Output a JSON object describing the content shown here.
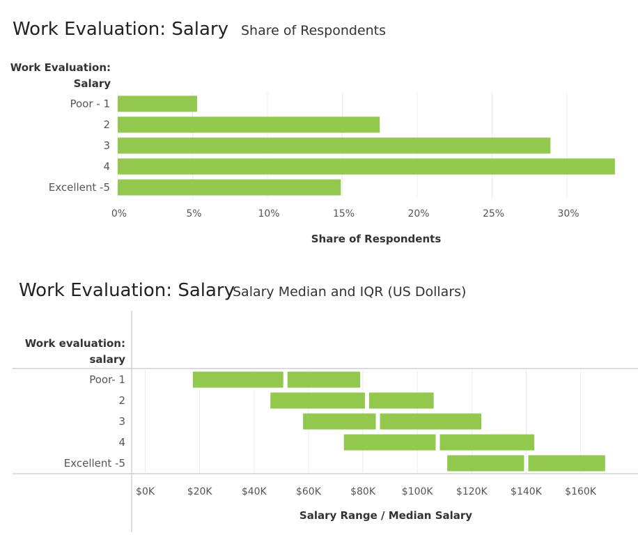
{
  "colors": {
    "bar": "#92C84E",
    "grid": "#ececec",
    "axis": "#c8c8c8",
    "text": "#333333",
    "tick": "#555555"
  },
  "chart_data": [
    {
      "type": "bar",
      "orientation": "horizontal",
      "title": "Work Evaluation: Salary",
      "subtitle": "Share of Respondents",
      "row_header": [
        "Work Evaluation:",
        "Salary"
      ],
      "categories": [
        "Poor - 1",
        "2",
        "3",
        "4",
        "Excellent -5"
      ],
      "values": [
        0.053,
        0.175,
        0.289,
        0.332,
        0.149
      ],
      "xlim": [
        0,
        0.34
      ],
      "xticks": [
        0,
        0.05,
        0.1,
        0.15,
        0.2,
        0.25,
        0.3
      ],
      "xtick_labels": [
        "0%",
        "5%",
        "10%",
        "15%",
        "20%",
        "25%",
        "30%"
      ],
      "xlabel": "Share of Respondents",
      "grid": true
    },
    {
      "type": "range-bar",
      "orientation": "horizontal",
      "title": "Work Evaluation: Salary",
      "subtitle": "Salary Median and IQR (US Dollars)",
      "row_header": [
        "Work evaluation:",
        "salary"
      ],
      "categories": [
        "Poor- 1",
        "2",
        "3",
        "4",
        "Excellent -5"
      ],
      "series": [
        {
          "name": "Q1",
          "values": [
            17500,
            46000,
            58000,
            73000,
            111000
          ]
        },
        {
          "name": "Median",
          "values": [
            51500,
            81500,
            85500,
            107500,
            140000
          ]
        },
        {
          "name": "Q3",
          "values": [
            79000,
            106000,
            123500,
            143000,
            169000
          ]
        }
      ],
      "xlim": [
        -5000,
        177000
      ],
      "xticks": [
        0,
        20000,
        40000,
        60000,
        80000,
        100000,
        120000,
        140000,
        160000
      ],
      "xtick_labels": [
        "$0K",
        "$20K",
        "$40K",
        "$60K",
        "$80K",
        "$100K",
        "$120K",
        "$140K",
        "$160K"
      ],
      "xlabel": "Salary Range / Median Salary",
      "grid": true
    }
  ]
}
